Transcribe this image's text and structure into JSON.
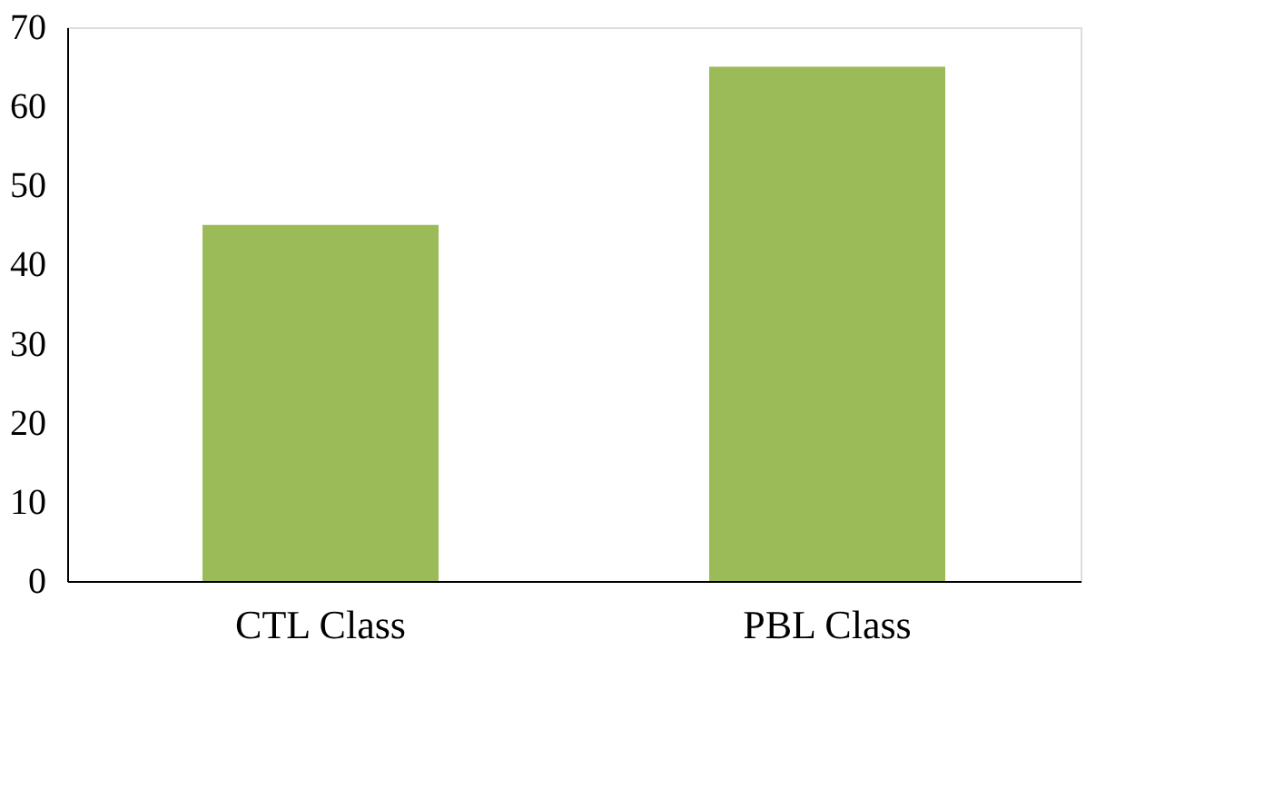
{
  "chart_data": {
    "type": "bar",
    "categories": [
      "CTL Class",
      "PBL Class"
    ],
    "values": [
      45,
      65
    ],
    "color": "#9bbb59",
    "ylim": [
      0,
      70
    ],
    "yticks": [
      0,
      10,
      20,
      30,
      40,
      50,
      60,
      70
    ],
    "grid": false
  }
}
